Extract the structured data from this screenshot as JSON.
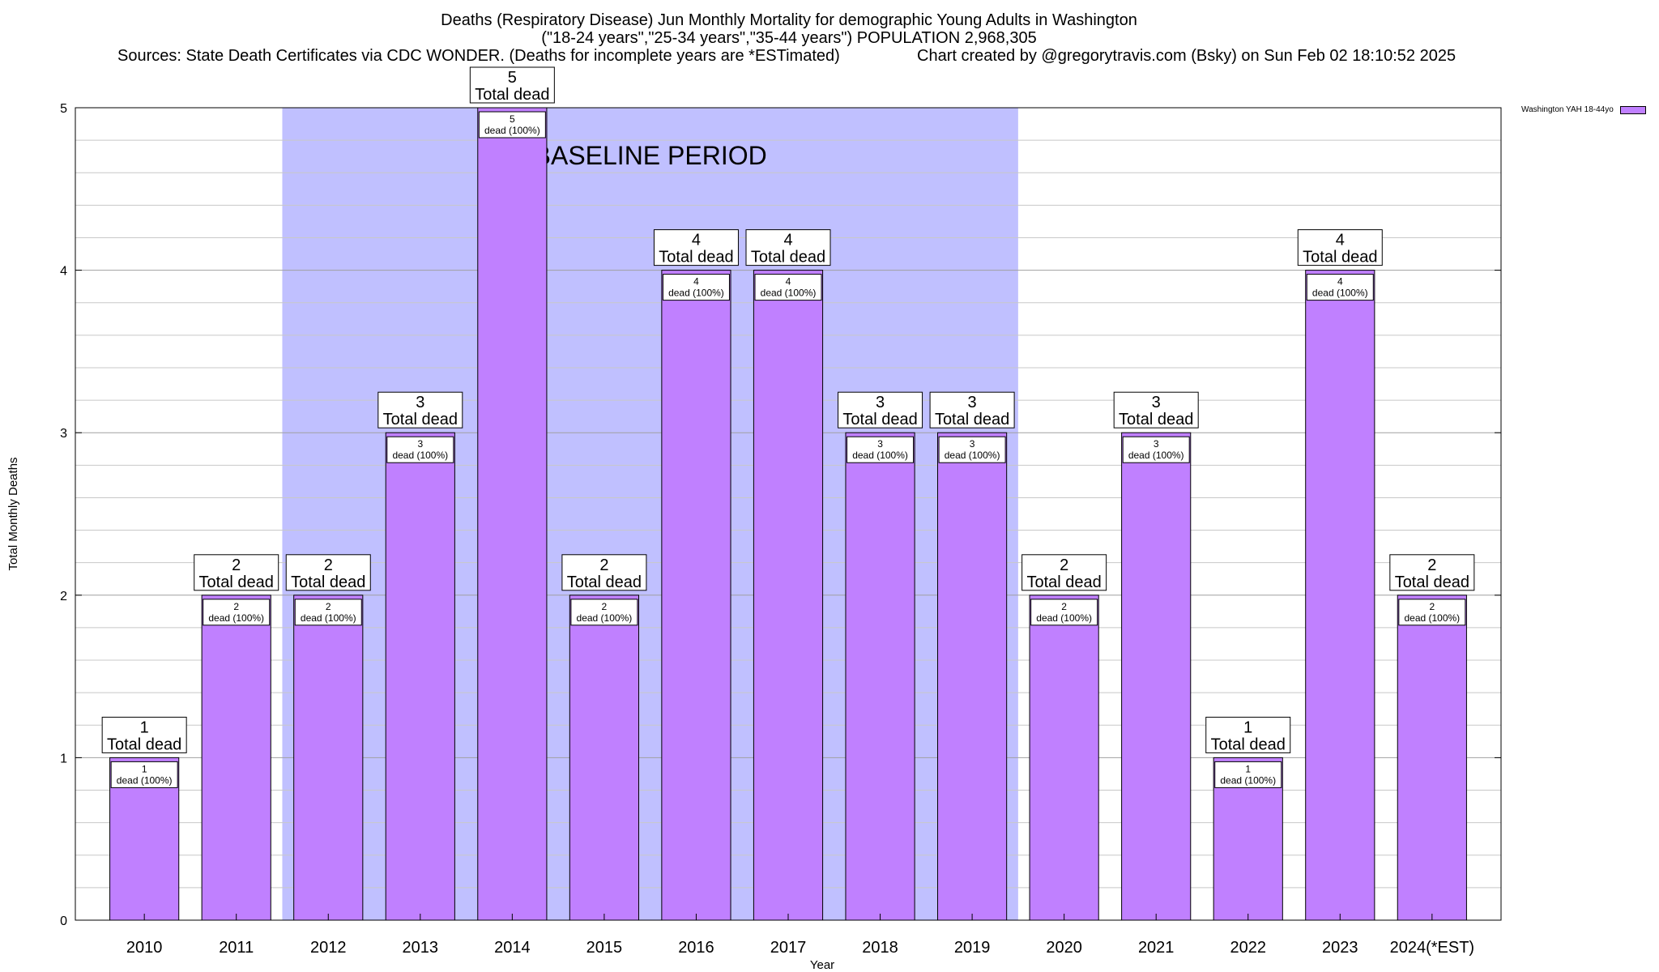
{
  "chart_data": {
    "type": "bar",
    "title_line1": "Deaths (Respiratory Disease) Jun Monthly Mortality for demographic Young Adults in Washington",
    "title_line2": "(\"18-24 years\",\"25-34 years\",\"35-44 years\") POPULATION 2,968,305",
    "sources": "Sources: State Death Certificates via CDC WONDER. (Deaths for incomplete years are *ESTimated)",
    "created_by": "Chart created by @gregorytravis.com (Bsky) on Sun Feb 02 18:10:52 2025",
    "xlabel": "Year",
    "ylabel": "Total Monthly Deaths",
    "ylim": [
      0,
      5
    ],
    "yticks": [
      0,
      1,
      2,
      3,
      4,
      5
    ],
    "minor_gridlines_per_unit": 5,
    "categories": [
      "2010",
      "2011",
      "2012",
      "2013",
      "2014",
      "2015",
      "2016",
      "2017",
      "2018",
      "2019",
      "2020",
      "2021",
      "2022",
      "2023",
      "2024(*EST)"
    ],
    "series": [
      {
        "name": "Washington YAH 18-44yo",
        "color": "#c080ff",
        "values": [
          1,
          2,
          2,
          3,
          5,
          2,
          4,
          4,
          3,
          3,
          2,
          3,
          1,
          4,
          2
        ]
      }
    ],
    "total_label_suffix": "Total dead",
    "inner_label_suffix": "dead (100%)",
    "baseline": {
      "label": "BASELINE PERIOD",
      "from_category": "2012",
      "to_category": "2019",
      "color": "#c0c0ff"
    }
  }
}
